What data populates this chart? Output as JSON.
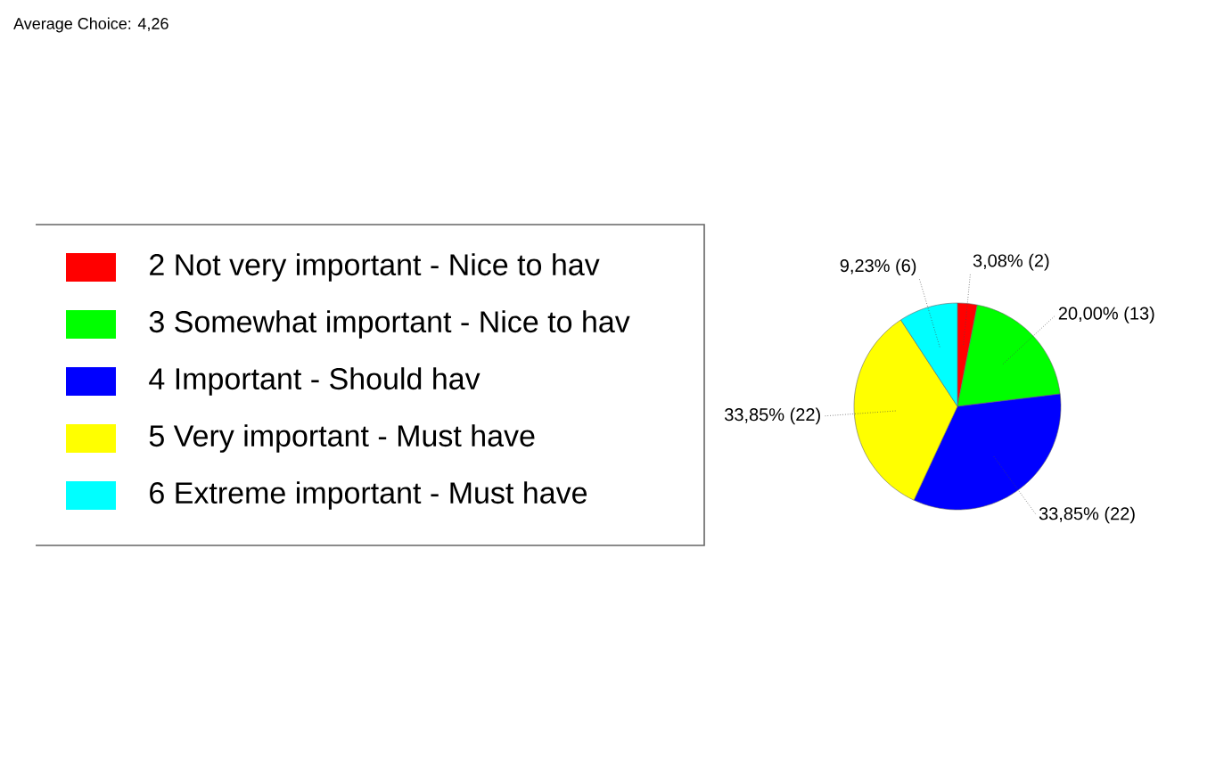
{
  "chart_data": {
    "type": "pie",
    "title": "Average Choice: 4,26",
    "categories": [
      "2 Not very important    - Nice to hav",
      "3 Somewhat important  - Nice to hav",
      "4 Important    - Should hav",
      "5 Very important    - Must have",
      "6 Extreme important    - Must have"
    ],
    "values": [
      3.08,
      20.0,
      33.85,
      33.85,
      9.23
    ],
    "value_labels": [
      "3,08% (2)",
      "20,00% (13)",
      "33,85% (22)",
      "33,85% (22)",
      "9,23% (6)"
    ],
    "colors": [
      "#ff0000",
      "#00ff00",
      "#0000ff",
      "#ffff00",
      "#00ffff"
    ],
    "legend": "left"
  }
}
